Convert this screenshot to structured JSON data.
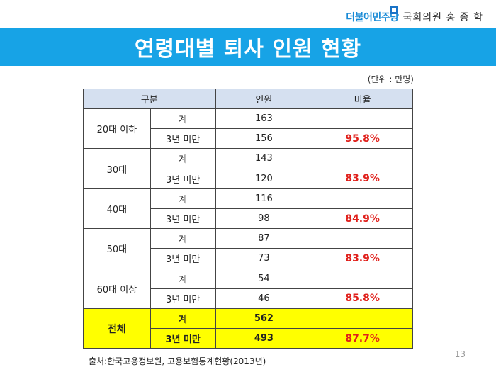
{
  "header": {
    "party_name": "더불어민주당",
    "member_name": "국회의원 홍 종 학"
  },
  "title": "연령대별 퇴사 인원 현황",
  "unit_note": "(단위 : 만명)",
  "table": {
    "headers": {
      "category": "구분",
      "count": "인원",
      "rate": "비율"
    },
    "groups": [
      {
        "age": "20대 이하",
        "rows": [
          {
            "kind": "계",
            "count": "163",
            "rate": ""
          },
          {
            "kind": "3년 미만",
            "count": "156",
            "rate": "95.8%"
          }
        ]
      },
      {
        "age": "30대",
        "rows": [
          {
            "kind": "계",
            "count": "143",
            "rate": ""
          },
          {
            "kind": "3년 미만",
            "count": "120",
            "rate": "83.9%"
          }
        ]
      },
      {
        "age": "40대",
        "rows": [
          {
            "kind": "계",
            "count": "116",
            "rate": ""
          },
          {
            "kind": "3년 미만",
            "count": "98",
            "rate": "84.9%"
          }
        ]
      },
      {
        "age": "50대",
        "rows": [
          {
            "kind": "계",
            "count": "87",
            "rate": ""
          },
          {
            "kind": "3년 미만",
            "count": "73",
            "rate": "83.9%"
          }
        ]
      },
      {
        "age": "60대 이상",
        "rows": [
          {
            "kind": "계",
            "count": "54",
            "rate": ""
          },
          {
            "kind": "3년 미만",
            "count": "46",
            "rate": "85.8%"
          }
        ]
      },
      {
        "age": "전체",
        "total": true,
        "rows": [
          {
            "kind": "계",
            "count": "562",
            "rate": ""
          },
          {
            "kind": "3년 미만",
            "count": "493",
            "rate": "87.7%"
          }
        ]
      }
    ]
  },
  "source": "출처:한국고용정보원, 고용보험통계현황(2013년)",
  "page_number": "13",
  "colors": {
    "title_bar": "#17a3e6",
    "header_row": "#d5e0f0",
    "total_row": "#ffff00",
    "rate_text": "#e0201b"
  }
}
